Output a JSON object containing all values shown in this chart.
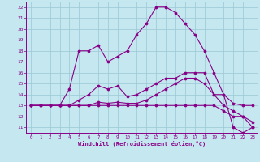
{
  "xlabel": "Windchill (Refroidissement éolien,°C)",
  "bg_color": "#c5e8f0",
  "grid_color": "#a0ccd8",
  "line_color": "#880088",
  "xlim": [
    -0.5,
    23.5
  ],
  "ylim": [
    10.5,
    22.5
  ],
  "xticks": [
    0,
    1,
    2,
    3,
    4,
    5,
    6,
    7,
    8,
    9,
    10,
    11,
    12,
    13,
    14,
    15,
    16,
    17,
    18,
    19,
    20,
    21,
    22,
    23
  ],
  "yticks": [
    11,
    12,
    13,
    14,
    15,
    16,
    17,
    18,
    19,
    20,
    21,
    22
  ],
  "line1_x": [
    0,
    1,
    2,
    3,
    4,
    5,
    6,
    7,
    8,
    9,
    10,
    11,
    12,
    13,
    14,
    15,
    16,
    17,
    18,
    19,
    20,
    21,
    22,
    23
  ],
  "line1_y": [
    13,
    13,
    13,
    13,
    14.5,
    18,
    18,
    18.5,
    17,
    17.5,
    18,
    19.5,
    20.5,
    22,
    22,
    21.5,
    20.5,
    19.5,
    18,
    16,
    14,
    11,
    10.5,
    11
  ],
  "line2_x": [
    0,
    1,
    2,
    3,
    4,
    5,
    6,
    7,
    8,
    9,
    10,
    11,
    12,
    13,
    14,
    15,
    16,
    17,
    18,
    19,
    20,
    21,
    22,
    23
  ],
  "line2_y": [
    13,
    13,
    13,
    13,
    13,
    13.5,
    14,
    14.8,
    14.5,
    14.8,
    13.8,
    14,
    14.5,
    15,
    15.5,
    15.5,
    16,
    16,
    16,
    14,
    14,
    13.2,
    13,
    13
  ],
  "line3_x": [
    0,
    1,
    2,
    3,
    4,
    5,
    6,
    7,
    8,
    9,
    10,
    11,
    12,
    13,
    14,
    15,
    16,
    17,
    18,
    19,
    20,
    21,
    22,
    23
  ],
  "line3_y": [
    13,
    13,
    13,
    13,
    13,
    13,
    13,
    13.3,
    13.2,
    13.3,
    13.2,
    13.2,
    13.5,
    14,
    14.5,
    15,
    15.5,
    15.5,
    15,
    14,
    13,
    12.5,
    12,
    11.5
  ],
  "line4_x": [
    0,
    1,
    2,
    3,
    4,
    5,
    6,
    7,
    8,
    9,
    10,
    11,
    12,
    13,
    14,
    15,
    16,
    17,
    18,
    19,
    20,
    21,
    22,
    23
  ],
  "line4_y": [
    13,
    13,
    13,
    13,
    13,
    13,
    13,
    13,
    13,
    13,
    13,
    13,
    13,
    13,
    13,
    13,
    13,
    13,
    13,
    13,
    12.5,
    12,
    12,
    11
  ]
}
